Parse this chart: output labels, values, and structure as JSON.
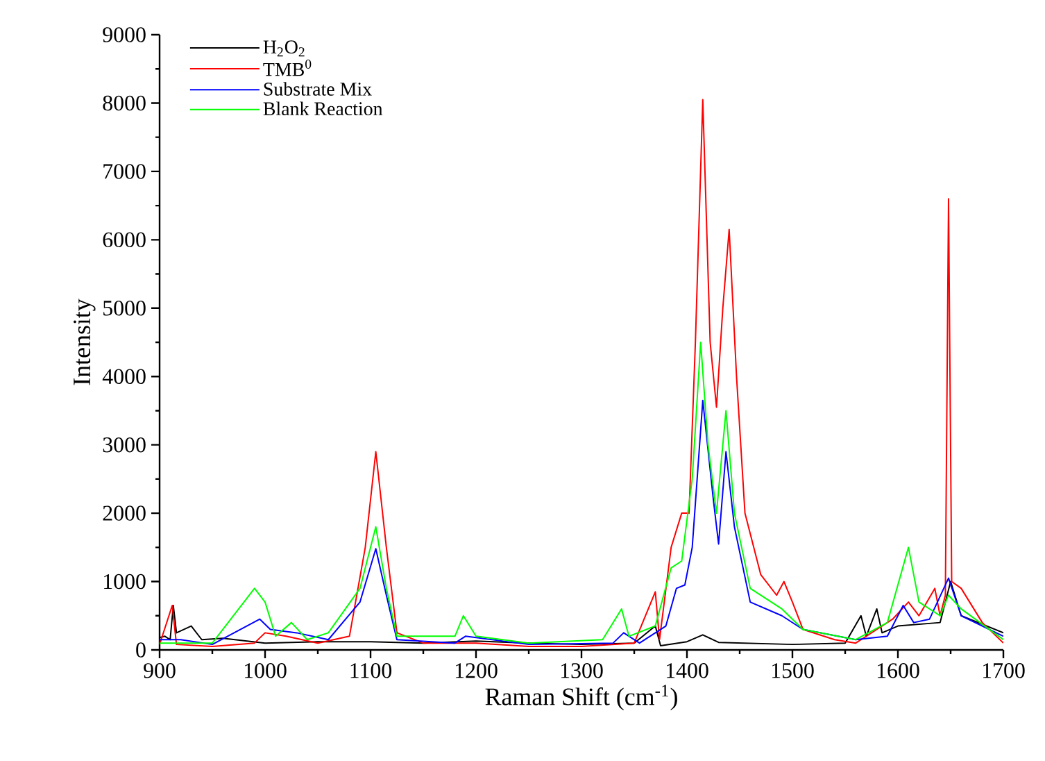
{
  "chart_data": {
    "type": "line",
    "xlabel": "Raman Shift (cm$^{-1}$)",
    "ylabel": "Intensity",
    "xlim": [
      900,
      1700
    ],
    "xticks": [
      900,
      1000,
      1100,
      1200,
      1300,
      1400,
      1500,
      1600,
      1700
    ],
    "ylim": [
      0,
      9000
    ],
    "yticks": [
      0,
      1000,
      2000,
      3000,
      4000,
      5000,
      6000,
      7000,
      8000,
      9000
    ],
    "grid": false,
    "legend": "top left",
    "marker": "none",
    "line_style": "solid",
    "series": [
      {
        "name": "H$_{2}$O$_{2}$",
        "color": "#000000",
        "x": [
          900,
          905,
          910,
          913,
          916,
          930,
          940,
          960,
          1000,
          1050,
          1100,
          1150,
          1200,
          1250,
          1300,
          1350,
          1370,
          1375,
          1400,
          1415,
          1430,
          1500,
          1550,
          1565,
          1570,
          1580,
          1585,
          1600,
          1640,
          1650,
          1660,
          1700
        ],
        "values": [
          180,
          200,
          150,
          650,
          250,
          350,
          150,
          170,
          100,
          120,
          120,
          100,
          130,
          100,
          80,
          100,
          350,
          60,
          120,
          220,
          110,
          80,
          100,
          500,
          200,
          600,
          250,
          350,
          400,
          1000,
          500,
          250
        ]
      },
      {
        "name": "TMB$^{0}$",
        "color": "#ff0000",
        "x": [
          900,
          912,
          916,
          950,
          990,
          1000,
          1020,
          1050,
          1080,
          1095,
          1105,
          1115,
          1125,
          1150,
          1200,
          1250,
          1300,
          1350,
          1370,
          1374,
          1385,
          1395,
          1402,
          1408,
          1415,
          1422,
          1428,
          1434,
          1440,
          1447,
          1455,
          1470,
          1485,
          1492,
          1500,
          1510,
          1540,
          1560,
          1580,
          1595,
          1610,
          1620,
          1635,
          1640,
          1645,
          1648,
          1651,
          1660,
          1680,
          1700
        ],
        "values": [
          80,
          650,
          80,
          50,
          100,
          250,
          200,
          100,
          200,
          1500,
          2900,
          1500,
          250,
          100,
          100,
          50,
          50,
          100,
          850,
          150,
          1500,
          2000,
          2000,
          4500,
          8050,
          4500,
          3550,
          5000,
          6150,
          4000,
          2000,
          1100,
          800,
          1000,
          700,
          300,
          150,
          100,
          300,
          450,
          700,
          500,
          900,
          500,
          800,
          6600,
          1000,
          900,
          400,
          100
        ]
      },
      {
        "name": "Substrate Mix",
        "color": "#0000ff",
        "x": [
          900,
          920,
          950,
          995,
          1005,
          1030,
          1060,
          1090,
          1105,
          1115,
          1125,
          1180,
          1190,
          1250,
          1330,
          1340,
          1355,
          1380,
          1390,
          1398,
          1405,
          1415,
          1425,
          1430,
          1437,
          1445,
          1460,
          1490,
          1510,
          1560,
          1590,
          1605,
          1615,
          1630,
          1648,
          1660,
          1700
        ],
        "values": [
          150,
          150,
          80,
          450,
          300,
          250,
          150,
          700,
          1480,
          800,
          150,
          100,
          200,
          80,
          100,
          250,
          100,
          350,
          900,
          950,
          1500,
          3650,
          2200,
          1550,
          2900,
          1800,
          700,
          500,
          300,
          150,
          200,
          650,
          400,
          450,
          1050,
          500,
          200
        ]
      },
      {
        "name": "Blank Reaction",
        "color": "#00ff00",
        "x": [
          900,
          950,
          990,
          1000,
          1010,
          1025,
          1040,
          1060,
          1090,
          1105,
          1115,
          1125,
          1180,
          1188,
          1200,
          1250,
          1320,
          1338,
          1345,
          1370,
          1385,
          1395,
          1405,
          1413,
          1420,
          1428,
          1437,
          1445,
          1460,
          1490,
          1510,
          1560,
          1590,
          1610,
          1620,
          1640,
          1648,
          1660,
          1700
        ],
        "values": [
          100,
          100,
          900,
          700,
          200,
          400,
          150,
          250,
          900,
          1800,
          900,
          200,
          200,
          500,
          200,
          100,
          150,
          600,
          200,
          350,
          1200,
          1300,
          2500,
          4500,
          3000,
          2000,
          3500,
          2000,
          900,
          600,
          300,
          150,
          400,
          1500,
          700,
          500,
          800,
          600,
          150
        ]
      }
    ]
  }
}
